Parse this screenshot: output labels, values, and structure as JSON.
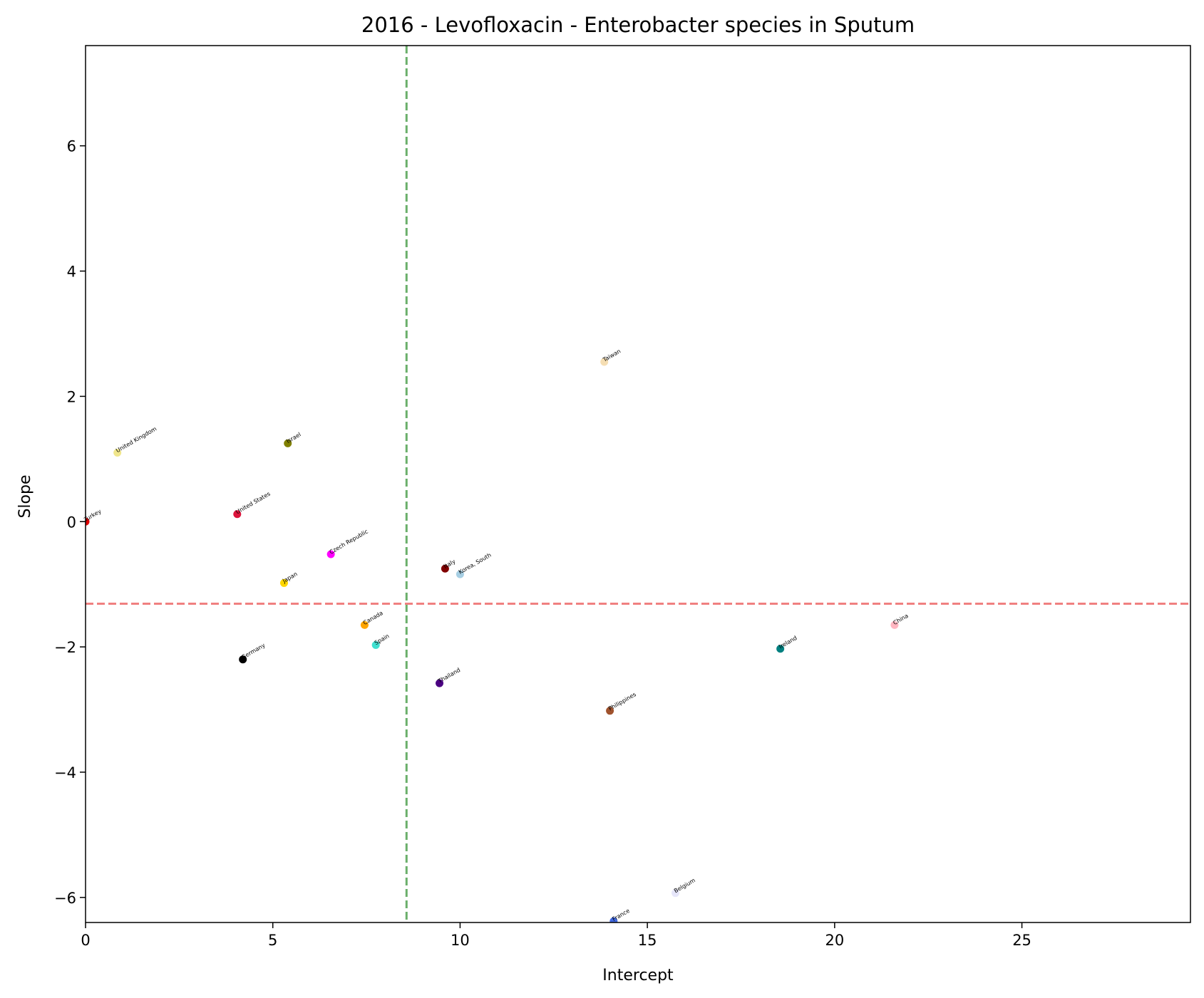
{
  "chart_data": {
    "type": "scatter",
    "title": "2016 - Levofloxacin - Enterobacter species in Sputum",
    "xlabel": "Intercept",
    "ylabel": "Slope",
    "xlim": [
      0,
      29.5
    ],
    "ylim": [
      -6.4,
      7.6
    ],
    "xticks": [
      0,
      5,
      10,
      15,
      20,
      25
    ],
    "yticks": [
      -6,
      -4,
      -2,
      0,
      2,
      4,
      6
    ],
    "xtick_labels": [
      "0",
      "5",
      "10",
      "15",
      "20",
      "25"
    ],
    "ytick_labels": [
      "−6",
      "−4",
      "−2",
      "0",
      "2",
      "4",
      "6"
    ],
    "grid": false,
    "reference_lines": {
      "vertical": {
        "x": 8.57,
        "color": "#6aaf6a",
        "style": "dashed"
      },
      "horizontal": {
        "y": -1.31,
        "color": "#f08080",
        "style": "dashed"
      }
    },
    "points": [
      {
        "label": "Turkey",
        "x": 0.0,
        "y": 0.0,
        "color": "#e00000"
      },
      {
        "label": "United Kingdom",
        "x": 0.85,
        "y": 1.1,
        "color": "#f0e68c"
      },
      {
        "label": "United States",
        "x": 4.05,
        "y": 0.12,
        "color": "#dc143c"
      },
      {
        "label": "Israel",
        "x": 5.4,
        "y": 1.25,
        "color": "#808000"
      },
      {
        "label": "Japan",
        "x": 5.3,
        "y": -0.98,
        "color": "#ffd700"
      },
      {
        "label": "Germany",
        "x": 4.2,
        "y": -2.2,
        "color": "#000000"
      },
      {
        "label": "Czech Republic",
        "x": 6.55,
        "y": -0.52,
        "color": "#ff00ff"
      },
      {
        "label": "Canada",
        "x": 7.45,
        "y": -1.65,
        "color": "#ffa500"
      },
      {
        "label": "Spain",
        "x": 7.75,
        "y": -1.97,
        "color": "#40e0d0"
      },
      {
        "label": "Italy",
        "x": 9.6,
        "y": -0.75,
        "color": "#800000"
      },
      {
        "label": "Korea, South",
        "x": 10.0,
        "y": -0.84,
        "color": "#a6cee3"
      },
      {
        "label": "Thailand",
        "x": 9.45,
        "y": -2.58,
        "color": "#4b0082"
      },
      {
        "label": "Taiwan",
        "x": 13.85,
        "y": 2.55,
        "color": "#f5deb3"
      },
      {
        "label": "Philippines",
        "x": 14.0,
        "y": -3.02,
        "color": "#a0522d"
      },
      {
        "label": "France",
        "x": 14.1,
        "y": -6.38,
        "color": "#4169e1"
      },
      {
        "label": "Belgium",
        "x": 15.75,
        "y": -5.93,
        "color": "#e6e6fa"
      },
      {
        "label": "Ireland",
        "x": 18.55,
        "y": -2.03,
        "color": "#008080"
      },
      {
        "label": "China",
        "x": 21.6,
        "y": -1.65,
        "color": "#ffb6c1"
      }
    ]
  }
}
